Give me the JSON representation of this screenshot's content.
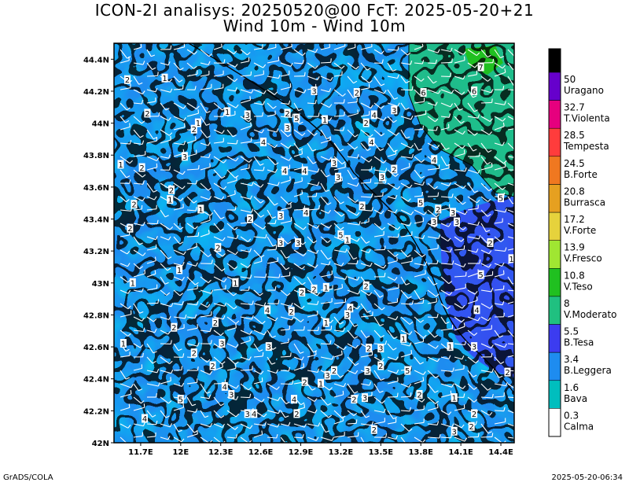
{
  "title": {
    "line1": "ICON-2I analisys: 20250520@00 FcT: 2025-05-20+21",
    "line2": "Wind 10m - Wind 10m"
  },
  "map": {
    "lat_labels": [
      "44.4N",
      "44.2N",
      "44N",
      "43.8N",
      "43.6N",
      "43.4N",
      "43.2N",
      "43N",
      "42.8N",
      "42.6N",
      "42.4N",
      "42.2N",
      "42N"
    ],
    "lon_labels": [
      "11.7E",
      "12E",
      "12.3E",
      "12.6E",
      "12.9E",
      "13.2E",
      "13.5E",
      "13.8E",
      "14.1E",
      "14.4E"
    ],
    "lat_range": [
      42.0,
      44.5
    ],
    "lon_range": [
      11.5,
      14.5
    ],
    "field": "wind speed 10m (m/s), shaded with black isolines and white wind barbs",
    "wind_numbers": [
      {
        "v": "2",
        "lon": 11.6,
        "lat": 44.27
      },
      {
        "v": "1",
        "lon": 11.88,
        "lat": 44.28
      },
      {
        "v": "1",
        "lon": 12.35,
        "lat": 44.07
      },
      {
        "v": "2",
        "lon": 11.75,
        "lat": 44.06
      },
      {
        "v": "1",
        "lon": 12.13,
        "lat": 44.0
      },
      {
        "v": "2",
        "lon": 12.1,
        "lat": 43.96
      },
      {
        "v": "3",
        "lon": 12.03,
        "lat": 43.79
      },
      {
        "v": "1",
        "lon": 11.55,
        "lat": 43.74
      },
      {
        "v": "2",
        "lon": 11.71,
        "lat": 43.72
      },
      {
        "v": "2",
        "lon": 11.93,
        "lat": 43.58
      },
      {
        "v": "1",
        "lon": 11.92,
        "lat": 43.52
      },
      {
        "v": "2",
        "lon": 11.65,
        "lat": 43.49
      },
      {
        "v": "1",
        "lon": 12.15,
        "lat": 43.46
      },
      {
        "v": "2",
        "lon": 11.62,
        "lat": 43.34
      },
      {
        "v": "2",
        "lon": 12.52,
        "lat": 43.4
      },
      {
        "v": "3",
        "lon": 12.75,
        "lat": 43.42
      },
      {
        "v": "4",
        "lon": 12.94,
        "lat": 43.44
      },
      {
        "v": "3",
        "lon": 12.88,
        "lat": 43.25
      },
      {
        "v": "5",
        "lon": 13.2,
        "lat": 43.3
      },
      {
        "v": "1",
        "lon": 13.25,
        "lat": 43.27
      },
      {
        "v": "3",
        "lon": 12.5,
        "lat": 44.05
      },
      {
        "v": "2",
        "lon": 12.8,
        "lat": 44.06
      },
      {
        "v": "5",
        "lon": 12.87,
        "lat": 44.03
      },
      {
        "v": "3",
        "lon": 12.8,
        "lat": 43.97
      },
      {
        "v": "1",
        "lon": 13.08,
        "lat": 44.02
      },
      {
        "v": "2",
        "lon": 13.39,
        "lat": 44.0
      },
      {
        "v": "4",
        "lon": 13.45,
        "lat": 44.05
      },
      {
        "v": "3",
        "lon": 13.6,
        "lat": 44.08
      },
      {
        "v": "2",
        "lon": 13.32,
        "lat": 44.19
      },
      {
        "v": "6",
        "lon": 13.82,
        "lat": 44.19
      },
      {
        "v": "3",
        "lon": 13.0,
        "lat": 44.2
      },
      {
        "v": "4",
        "lon": 12.62,
        "lat": 43.88
      },
      {
        "v": "4",
        "lon": 12.78,
        "lat": 43.7
      },
      {
        "v": "4",
        "lon": 12.93,
        "lat": 43.7
      },
      {
        "v": "3",
        "lon": 13.15,
        "lat": 43.75
      },
      {
        "v": "3",
        "lon": 13.18,
        "lat": 43.66
      },
      {
        "v": "4",
        "lon": 13.43,
        "lat": 43.88
      },
      {
        "v": "3",
        "lon": 13.51,
        "lat": 43.66
      },
      {
        "v": "2",
        "lon": 13.6,
        "lat": 43.71
      },
      {
        "v": "4",
        "lon": 13.9,
        "lat": 43.77
      },
      {
        "v": "7",
        "lon": 14.25,
        "lat": 44.35
      },
      {
        "v": "6",
        "lon": 14.2,
        "lat": 44.2
      },
      {
        "v": "5",
        "lon": 13.8,
        "lat": 43.5
      },
      {
        "v": "2",
        "lon": 13.93,
        "lat": 43.46
      },
      {
        "v": "3",
        "lon": 14.04,
        "lat": 43.44
      },
      {
        "v": "5",
        "lon": 14.4,
        "lat": 43.53
      },
      {
        "v": "3",
        "lon": 13.9,
        "lat": 43.38
      },
      {
        "v": "3",
        "lon": 14.07,
        "lat": 43.38
      },
      {
        "v": "2",
        "lon": 14.32,
        "lat": 43.25
      },
      {
        "v": "1",
        "lon": 14.48,
        "lat": 43.15
      },
      {
        "v": "5",
        "lon": 14.25,
        "lat": 43.05
      },
      {
        "v": "4",
        "lon": 14.22,
        "lat": 42.83
      },
      {
        "v": "2",
        "lon": 13.36,
        "lat": 43.48
      },
      {
        "v": "3",
        "lon": 12.75,
        "lat": 43.25
      },
      {
        "v": "2",
        "lon": 12.28,
        "lat": 43.22
      },
      {
        "v": "1",
        "lon": 11.99,
        "lat": 43.08
      },
      {
        "v": "1",
        "lon": 12.41,
        "lat": 43.0
      },
      {
        "v": "1",
        "lon": 11.64,
        "lat": 43.0
      },
      {
        "v": "1",
        "lon": 11.57,
        "lat": 42.62
      },
      {
        "v": "2",
        "lon": 11.95,
        "lat": 42.72
      },
      {
        "v": "2",
        "lon": 12.26,
        "lat": 42.75
      },
      {
        "v": "3",
        "lon": 12.31,
        "lat": 42.62
      },
      {
        "v": "2",
        "lon": 12.1,
        "lat": 42.56
      },
      {
        "v": "4",
        "lon": 12.65,
        "lat": 42.83
      },
      {
        "v": "2",
        "lon": 12.83,
        "lat": 42.82
      },
      {
        "v": "3",
        "lon": 12.66,
        "lat": 42.6
      },
      {
        "v": "2",
        "lon": 12.91,
        "lat": 42.94
      },
      {
        "v": "2",
        "lon": 13.0,
        "lat": 42.96
      },
      {
        "v": "1",
        "lon": 13.09,
        "lat": 42.97
      },
      {
        "v": "4",
        "lon": 13.27,
        "lat": 42.84
      },
      {
        "v": "1",
        "lon": 13.09,
        "lat": 42.75
      },
      {
        "v": "3",
        "lon": 13.25,
        "lat": 42.8
      },
      {
        "v": "2",
        "lon": 13.39,
        "lat": 42.98
      },
      {
        "v": "2",
        "lon": 13.41,
        "lat": 42.59
      },
      {
        "v": "3",
        "lon": 13.5,
        "lat": 42.59
      },
      {
        "v": "1",
        "lon": 13.67,
        "lat": 42.65
      },
      {
        "v": "1",
        "lon": 14.02,
        "lat": 42.6
      },
      {
        "v": "3",
        "lon": 14.2,
        "lat": 42.6
      },
      {
        "v": "3",
        "lon": 13.4,
        "lat": 42.45
      },
      {
        "v": "2",
        "lon": 13.5,
        "lat": 42.48
      },
      {
        "v": "5",
        "lon": 13.7,
        "lat": 42.45
      },
      {
        "v": "2",
        "lon": 14.45,
        "lat": 42.44
      },
      {
        "v": "2",
        "lon": 12.24,
        "lat": 42.48
      },
      {
        "v": "4",
        "lon": 12.33,
        "lat": 42.35
      },
      {
        "v": "3",
        "lon": 12.38,
        "lat": 42.3
      },
      {
        "v": "5",
        "lon": 12.0,
        "lat": 42.27
      },
      {
        "v": "3",
        "lon": 12.5,
        "lat": 42.18
      },
      {
        "v": "4",
        "lon": 12.55,
        "lat": 42.18
      },
      {
        "v": "4",
        "lon": 12.85,
        "lat": 42.27
      },
      {
        "v": "2",
        "lon": 12.93,
        "lat": 42.38
      },
      {
        "v": "1",
        "lon": 13.05,
        "lat": 42.37
      },
      {
        "v": "3",
        "lon": 13.1,
        "lat": 42.42
      },
      {
        "v": "2",
        "lon": 13.15,
        "lat": 42.45
      },
      {
        "v": "2",
        "lon": 12.87,
        "lat": 42.18
      },
      {
        "v": "2",
        "lon": 13.3,
        "lat": 42.27
      },
      {
        "v": "3",
        "lon": 13.38,
        "lat": 42.28
      },
      {
        "v": "2",
        "lon": 13.45,
        "lat": 42.08
      },
      {
        "v": "2",
        "lon": 13.79,
        "lat": 42.3
      },
      {
        "v": "1",
        "lon": 14.05,
        "lat": 42.28
      },
      {
        "v": "2",
        "lon": 14.2,
        "lat": 42.18
      },
      {
        "v": "2",
        "lon": 14.18,
        "lat": 42.1
      },
      {
        "v": "3",
        "lon": 14.05,
        "lat": 42.07
      },
      {
        "v": "4",
        "lon": 11.73,
        "lat": 42.15
      }
    ]
  },
  "colorbar": {
    "levels": [
      {
        "value": "50",
        "label": "Uragano",
        "color": "#6600cc"
      },
      {
        "value": "32.7",
        "label": "T.Violenta",
        "color": "#e6007e"
      },
      {
        "value": "28.5",
        "label": "Tempesta",
        "color": "#ff3c3c"
      },
      {
        "value": "24.5",
        "label": "B.Forte",
        "color": "#f07820"
      },
      {
        "value": "20.8",
        "label": "Burrasca",
        "color": "#e6a020"
      },
      {
        "value": "17.2",
        "label": "V.Forte",
        "color": "#e6d23c"
      },
      {
        "value": "13.9",
        "label": "V.Fresco",
        "color": "#a0e632"
      },
      {
        "value": "10.8",
        "label": "V.Teso",
        "color": "#20c020"
      },
      {
        "value": "8",
        "label": "V.Moderato",
        "color": "#20c080"
      },
      {
        "value": "5.5",
        "label": "B.Tesa",
        "color": "#3c3cf0"
      },
      {
        "value": "3.4",
        "label": "B.Leggera",
        "color": "#1e8cf0"
      },
      {
        "value": "1.6",
        "label": "Bava",
        "color": "#00bebe"
      },
      {
        "value": "0.3",
        "label": "Calma",
        "color": "#ffffff"
      }
    ],
    "top_color": "#000000"
  },
  "footer": {
    "credit": "GrADS/COLA",
    "timestamp": "2025-05-20-06:34"
  }
}
